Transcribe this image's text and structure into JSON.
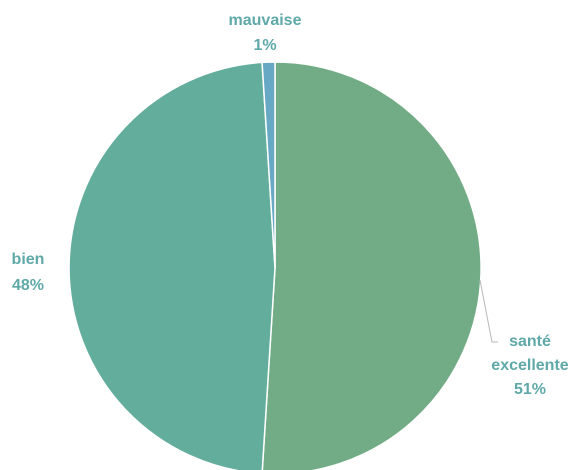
{
  "chart_data": {
    "type": "pie",
    "slices": [
      {
        "label": "santé excellente",
        "label_lines": [
          "santé",
          "excellente"
        ],
        "value": 51,
        "value_label": "51%",
        "color": "#72AC86"
      },
      {
        "label": "bien",
        "label_lines": [
          "bien"
        ],
        "value": 48,
        "value_label": "48%",
        "color": "#63AD9C"
      },
      {
        "label": "mauvaise",
        "label_lines": [
          "mauvaise"
        ],
        "value": 1,
        "value_label": "1%",
        "color": "#67A8C4"
      }
    ],
    "start_angle_deg": 0,
    "direction": "clockwise",
    "title": "",
    "legend": "none",
    "label_color": "#5FA9A8"
  }
}
